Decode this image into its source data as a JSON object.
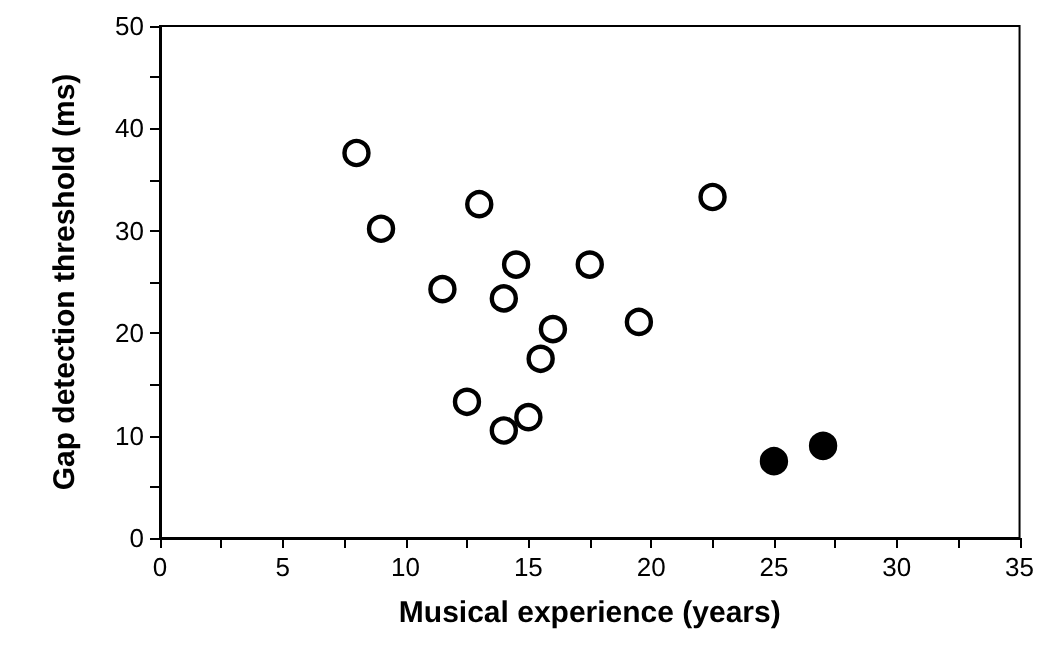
{
  "chart_data": {
    "type": "scatter",
    "xlabel": "Musical experience (years)",
    "ylabel": "Gap detection threshold (ms)",
    "xlim": [
      0,
      35
    ],
    "ylim": [
      0,
      50
    ],
    "xticks": [
      0,
      {
        "value": 2.5,
        "label": null
      },
      5,
      {
        "value": 7.5,
        "label": null
      },
      10,
      {
        "value": 12.5,
        "label": null
      },
      15,
      {
        "value": 17.5,
        "label": null
      },
      20,
      {
        "value": 22.5,
        "label": null
      },
      25,
      {
        "value": 27.5,
        "label": null
      },
      30,
      {
        "value": 32.5,
        "label": null
      },
      35
    ],
    "yticks": [
      0,
      {
        "value": 5,
        "label": null
      },
      10,
      {
        "value": 15,
        "label": null
      },
      20,
      {
        "value": 25,
        "label": null
      },
      30,
      {
        "value": 35,
        "label": null
      },
      40,
      {
        "value": 45,
        "label": null
      },
      50
    ],
    "marker": "circle",
    "series": [
      {
        "color": "#ffffff",
        "x": [
          8,
          9,
          11.5,
          13,
          14.5,
          14,
          17.5,
          22.5,
          19.5,
          16,
          15.5,
          12.5,
          14,
          15
        ],
        "values": [
          37.6,
          30.2,
          24.3,
          32.6,
          26.7,
          23.4,
          26.7,
          33.3,
          21.1,
          20.4,
          17.5,
          13.3,
          10.5,
          11.8
        ]
      },
      {
        "color": "#000000",
        "x": [
          25,
          27
        ],
        "values": [
          7.5,
          9.0
        ]
      }
    ]
  }
}
